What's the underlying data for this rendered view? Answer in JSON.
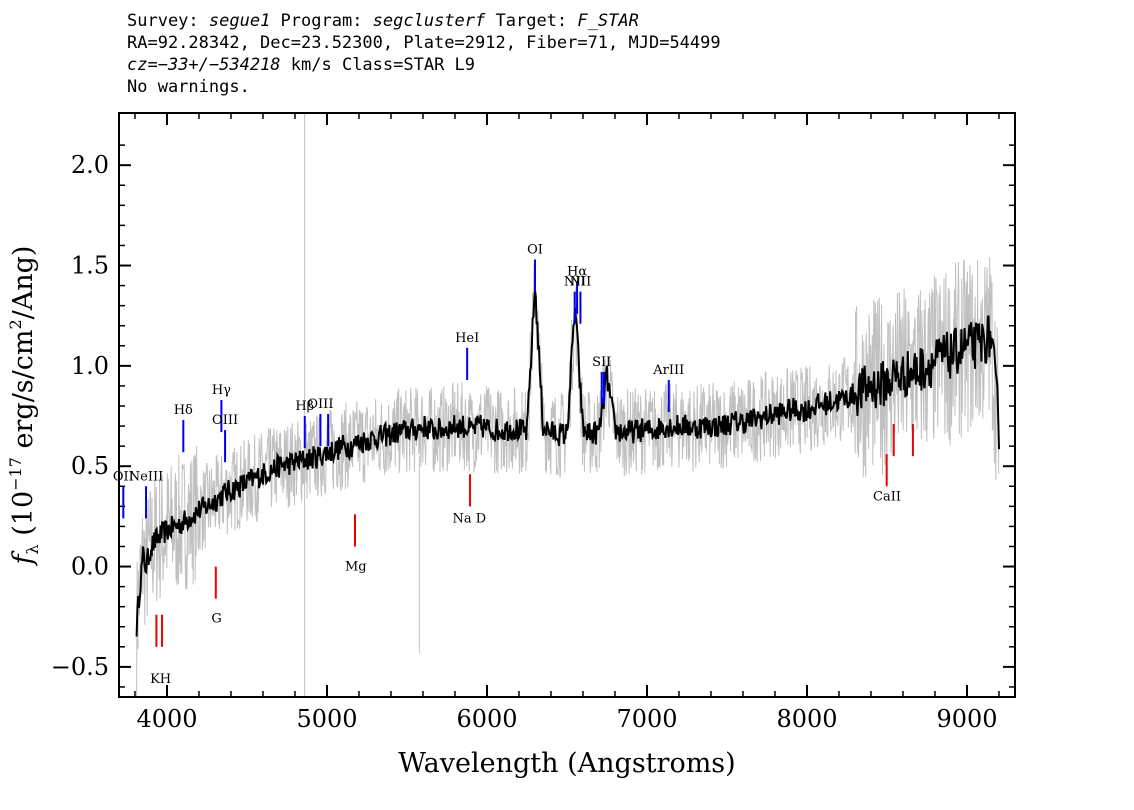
{
  "header": {
    "survey_label": "Survey: ",
    "survey": "segue1",
    "program_label": " Program: ",
    "program": "segclusterf",
    "target_label": " Target: ",
    "target": "F_STAR",
    "line2": "RA=92.28342, Dec=23.52300, Plate=2912, Fiber=71, MJD=54499",
    "cz_prefix": "cz=",
    "cz_value": "−33+/−534218",
    "cz_suffix": " km/s Class=STAR L9",
    "line4": "No warnings."
  },
  "chart_data": {
    "type": "line",
    "title": "",
    "xlabel": "Wavelength (Angstroms)",
    "ylabel": "f_λ (10^-17 erg/s/cm^2/Ang)",
    "xlim": [
      3700,
      9300
    ],
    "ylim": [
      -0.65,
      2.26
    ],
    "xticks": [
      4000,
      5000,
      6000,
      7000,
      8000,
      9000
    ],
    "yticks": [
      -0.5,
      0.0,
      0.5,
      1.0,
      1.5,
      2.0
    ],
    "ytick_labels": [
      "−0.5",
      "0.0",
      "0.5",
      "1.0",
      "1.5",
      "2.0"
    ],
    "series": [
      {
        "role": "smoothed flux",
        "color": "#000000",
        "x": [
          3810,
          3830,
          3850,
          3870,
          3900,
          3950,
          4000,
          4050,
          4100,
          4150,
          4200,
          4250,
          4300,
          4350,
          4400,
          4450,
          4500,
          4550,
          4600,
          4650,
          4700,
          4750,
          4800,
          4850,
          4900,
          4950,
          5000,
          5050,
          5100,
          5150,
          5200,
          5250,
          5300,
          5350,
          5400,
          5450,
          5500,
          5550,
          5600,
          5650,
          5700,
          5750,
          5800,
          5850,
          5900,
          5950,
          6000,
          6050,
          6100,
          6150,
          6200,
          6250,
          6300,
          6350,
          6400,
          6450,
          6500,
          6550,
          6600,
          6650,
          6700,
          6750,
          6800,
          6850,
          6900,
          6950,
          7000,
          7050,
          7100,
          7150,
          7200,
          7250,
          7300,
          7350,
          7400,
          7450,
          7500,
          7550,
          7600,
          7650,
          7700,
          7750,
          7800,
          7850,
          7900,
          7950,
          8000,
          8050,
          8100,
          8150,
          8200,
          8250,
          8300,
          8350,
          8400,
          8450,
          8500,
          8550,
          8600,
          8650,
          8700,
          8750,
          8800,
          8850,
          8900,
          8950,
          9000,
          9050,
          9100,
          9150,
          9200
        ],
        "y": [
          -0.3,
          -0.1,
          0.05,
          0.0,
          0.1,
          0.15,
          0.18,
          0.2,
          0.22,
          0.25,
          0.28,
          0.3,
          0.33,
          0.36,
          0.38,
          0.4,
          0.42,
          0.44,
          0.46,
          0.48,
          0.5,
          0.51,
          0.52,
          0.53,
          0.54,
          0.55,
          0.57,
          0.58,
          0.6,
          0.6,
          0.62,
          0.63,
          0.64,
          0.65,
          0.66,
          0.67,
          0.68,
          0.68,
          0.7,
          0.68,
          0.68,
          0.69,
          0.7,
          0.7,
          0.68,
          0.7,
          0.69,
          0.68,
          0.68,
          0.69,
          0.68,
          0.67,
          1.4,
          0.7,
          0.67,
          0.66,
          0.66,
          1.3,
          0.68,
          0.66,
          0.67,
          0.95,
          0.68,
          0.67,
          0.67,
          0.68,
          0.68,
          0.68,
          0.7,
          0.7,
          0.7,
          0.7,
          0.69,
          0.7,
          0.7,
          0.7,
          0.71,
          0.72,
          0.72,
          0.73,
          0.74,
          0.75,
          0.76,
          0.77,
          0.78,
          0.78,
          0.78,
          0.8,
          0.81,
          0.82,
          0.83,
          0.84,
          0.86,
          0.88,
          0.9,
          0.9,
          0.92,
          0.95,
          0.95,
          0.97,
          0.98,
          1.0,
          1.02,
          1.05,
          1.05,
          1.08,
          1.1,
          1.1,
          1.12,
          1.15,
          0.7
        ]
      }
    ],
    "emission_lines": [
      {
        "label": "OII",
        "x": 3727,
        "y": 0.4
      },
      {
        "label": "NeIII",
        "x": 3869,
        "y": 0.4
      },
      {
        "label": "Hδ",
        "x": 4102,
        "y": 0.73
      },
      {
        "label": "Hγ",
        "x": 4340,
        "y": 0.83
      },
      {
        "label": "OIII",
        "x": 4363,
        "y": 0.68
      },
      {
        "label": "Hβ",
        "x": 4861,
        "y": 0.75
      },
      {
        "label": "OIII",
        "x": 4959,
        "y": 0.76
      },
      {
        "label": "OIII",
        "x": 5007,
        "y": 0.76
      },
      {
        "label": "HeI",
        "x": 5876,
        "y": 1.09
      },
      {
        "label": "OI",
        "x": 6300,
        "y": 1.53
      },
      {
        "label": "NII",
        "x": 6548,
        "y": 1.37
      },
      {
        "label": "Hα",
        "x": 6563,
        "y": 1.42
      },
      {
        "label": "NII",
        "x": 6584,
        "y": 1.37
      },
      {
        "label": "SII",
        "x": 6717,
        "y": 0.97
      },
      {
        "label": "SII",
        "x": 6731,
        "y": 0.97
      },
      {
        "label": "ArIII",
        "x": 7136,
        "y": 0.93
      }
    ],
    "absorption_lines": [
      {
        "label": "K",
        "x": 3934,
        "y": -0.4
      },
      {
        "label": "H",
        "x": 3969,
        "y": -0.4
      },
      {
        "label": "G",
        "x": 4305,
        "y": -0.16
      },
      {
        "label": "Mg",
        "x": 5175,
        "y": 0.1
      },
      {
        "label": "Na",
        "x": 5894,
        "y": 0.3
      },
      {
        "label": "CaII",
        "x": 8498,
        "y": 0.4
      },
      {
        "label": "CaII",
        "x": 8542,
        "y": 0.55
      },
      {
        "label": "CaII",
        "x": 8662,
        "y": 0.55
      }
    ],
    "absorption_labels": [
      {
        "text": "KH",
        "x": 3960,
        "y": -0.58
      },
      {
        "text": "G",
        "x": 4310,
        "y": -0.28
      },
      {
        "text": "Mg",
        "x": 5180,
        "y": -0.02
      },
      {
        "text": "Na D",
        "x": 5890,
        "y": 0.22
      },
      {
        "text": "CaII",
        "x": 8500,
        "y": 0.33
      }
    ],
    "colors": {
      "emission": "#0000ee",
      "absorption": "#ee0000",
      "noise": "#c0c0c0",
      "flux": "#000000"
    }
  }
}
